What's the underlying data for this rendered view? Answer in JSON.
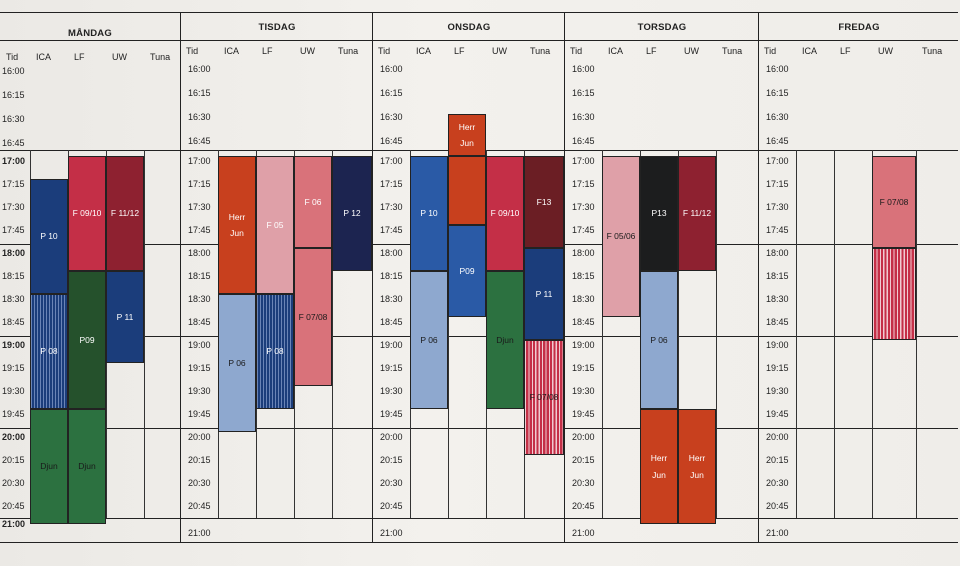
{
  "days": [
    "MÅNDAG",
    "TISDAG",
    "ONSDAG",
    "TORSDAG",
    "FREDAG"
  ],
  "columns": [
    "Tid",
    "ICA",
    "LF",
    "UW",
    "Tuna"
  ],
  "early_times": [
    "16:00",
    "16:15",
    "16:30",
    "16:45"
  ],
  "times": [
    "17:00",
    "17:15",
    "17:30",
    "17:45",
    "18:00",
    "18:15",
    "18:30",
    "18:45",
    "19:00",
    "19:15",
    "19:30",
    "19:45",
    "20:00",
    "20:15",
    "20:30",
    "20:45",
    "21:00"
  ],
  "colors": {
    "navy": "#1b3d7b",
    "dark_navy": "#1c2450",
    "blue": "#2a5aa6",
    "light_blue": "#8ea8cf",
    "crimson": "#c42f47",
    "wine": "#8e2130",
    "dark_wine": "#6b1e24",
    "orange_red": "#c8401e",
    "pink": "#dfa0a8",
    "rose": "#d9727a",
    "green": "#2c7140",
    "dark_green": "#25512c",
    "black": "#1c1d1e"
  },
  "blocks": [
    {
      "day": 0,
      "col": 1,
      "start": "17:15",
      "end": "18:30",
      "label": "P 10",
      "color": "navy"
    },
    {
      "day": 0,
      "col": 1,
      "start": "18:30",
      "end": "19:45",
      "label": "P 08",
      "color": "navy",
      "pattern": "stripe-dark"
    },
    {
      "day": 0,
      "col": 1,
      "start": "19:45",
      "end": "21:00",
      "label": "Djun",
      "color": "green",
      "dark_text": true
    },
    {
      "day": 0,
      "col": 2,
      "start": "17:00",
      "end": "18:15",
      "label": "F 09/10",
      "color": "crimson"
    },
    {
      "day": 0,
      "col": 2,
      "start": "18:15",
      "end": "19:45",
      "label": "P09",
      "color": "dark_green"
    },
    {
      "day": 0,
      "col": 2,
      "start": "19:45",
      "end": "21:00",
      "label": "Djun",
      "color": "green",
      "dark_text": true
    },
    {
      "day": 0,
      "col": 3,
      "start": "17:00",
      "end": "18:15",
      "label": "F 11/12",
      "color": "wine"
    },
    {
      "day": 0,
      "col": 3,
      "start": "18:15",
      "end": "19:15",
      "label": "P 11",
      "color": "navy"
    },
    {
      "day": 1,
      "col": 1,
      "start": "17:00",
      "end": "18:30",
      "label": "Herr Jun",
      "color": "orange_red"
    },
    {
      "day": 1,
      "col": 1,
      "start": "18:30",
      "end": "20:00",
      "label": "P 06",
      "color": "light_blue",
      "dark_text": true
    },
    {
      "day": 1,
      "col": 2,
      "start": "17:00",
      "end": "18:30",
      "label": "F 05",
      "color": "pink"
    },
    {
      "day": 1,
      "col": 2,
      "start": "18:30",
      "end": "19:45",
      "label": "P 08",
      "color": "navy",
      "pattern": "stripe-dark"
    },
    {
      "day": 1,
      "col": 3,
      "start": "17:00",
      "end": "18:00",
      "label": "F 06",
      "color": "rose"
    },
    {
      "day": 1,
      "col": 3,
      "start": "18:00",
      "end": "19:30",
      "label": "F 07/08",
      "color": "rose",
      "dark_text": true
    },
    {
      "day": 1,
      "col": 4,
      "start": "17:00",
      "end": "18:15",
      "label": "P 12",
      "color": "dark_navy"
    },
    {
      "day": 2,
      "col": 1,
      "start": "17:00",
      "end": "18:15",
      "label": "P 10",
      "color": "blue"
    },
    {
      "day": 2,
      "col": 1,
      "start": "18:15",
      "end": "19:45",
      "label": "P 06",
      "color": "light_blue",
      "dark_text": true
    },
    {
      "day": 2,
      "col": 2,
      "start": "16:30",
      "end": "17:00",
      "label": "Herr Jun",
      "color": "orange_red"
    },
    {
      "day": 2,
      "col": 2,
      "start": "17:00",
      "end": "17:45",
      "label": "",
      "color": "orange_red"
    },
    {
      "day": 2,
      "col": 2,
      "start": "17:45",
      "end": "18:45",
      "label": "P09",
      "color": "blue"
    },
    {
      "day": 2,
      "col": 3,
      "start": "17:00",
      "end": "18:15",
      "label": "F 09/10",
      "color": "crimson"
    },
    {
      "day": 2,
      "col": 3,
      "start": "18:15",
      "end": "19:45",
      "label": "Djun",
      "color": "green",
      "dark_text": true
    },
    {
      "day": 2,
      "col": 4,
      "start": "17:00",
      "end": "18:00",
      "label": "F13",
      "color": "dark_wine"
    },
    {
      "day": 2,
      "col": 4,
      "start": "18:00",
      "end": "19:00",
      "label": "P 11",
      "color": "navy"
    },
    {
      "day": 2,
      "col": 4,
      "start": "19:00",
      "end": "20:15",
      "label": "F 07/08",
      "color": "crimson",
      "pattern": "stripe",
      "dark_text": true
    },
    {
      "day": 3,
      "col": 1,
      "start": "17:00",
      "end": "18:45",
      "label": "F 05/06",
      "color": "pink",
      "dark_text": true
    },
    {
      "day": 3,
      "col": 2,
      "start": "17:00",
      "end": "18:15",
      "label": "P13",
      "color": "black"
    },
    {
      "day": 3,
      "col": 2,
      "start": "18:15",
      "end": "19:45",
      "label": "P 06",
      "color": "light_blue",
      "dark_text": true
    },
    {
      "day": 3,
      "col": 2,
      "start": "19:45",
      "end": "21:00",
      "label": "Herr Jun",
      "color": "orange_red"
    },
    {
      "day": 3,
      "col": 3,
      "start": "17:00",
      "end": "18:15",
      "label": "F 11/12",
      "color": "wine"
    },
    {
      "day": 3,
      "col": 3,
      "start": "19:45",
      "end": "21:00",
      "label": "Herr Jun",
      "color": "orange_red"
    },
    {
      "day": 4,
      "col": 3,
      "start": "17:00",
      "end": "18:00",
      "label": "F 07/08",
      "color": "rose",
      "dark_text": true
    },
    {
      "day": 4,
      "col": 3,
      "start": "18:00",
      "end": "19:00",
      "label": "",
      "color": "crimson",
      "pattern": "stripe"
    }
  ]
}
